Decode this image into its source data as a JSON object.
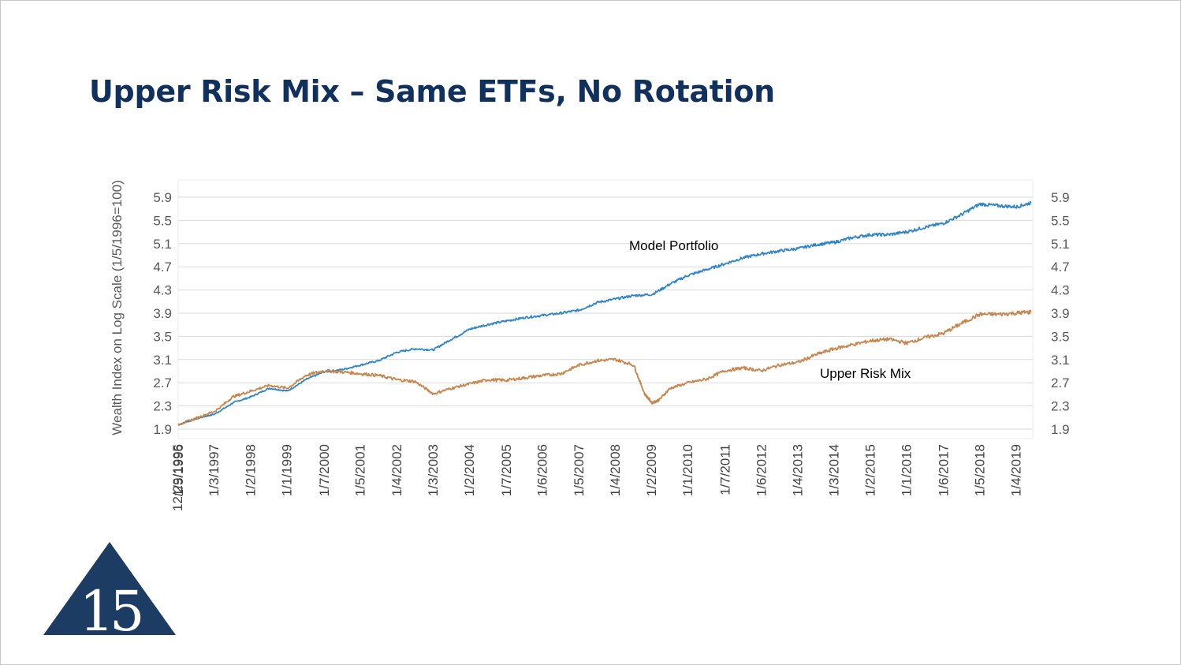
{
  "slide": {
    "title": "Upper Risk Mix – Same ETFs, No Rotation"
  },
  "chart_data": {
    "type": "line",
    "ylabel": "Wealth Index on Log Scale (1/5/1996=100)",
    "y_scale": "log",
    "ylim": [
      1.9,
      5.9
    ],
    "y_ticks": [
      "1.9",
      "2.3",
      "2.7",
      "3.1",
      "3.5",
      "3.9",
      "4.3",
      "4.7",
      "5.1",
      "5.5",
      "5.9"
    ],
    "y_ticks_right": [
      "1.9",
      "2.3",
      "2.7",
      "3.1",
      "3.5",
      "3.9",
      "4.3",
      "4.7",
      "5.1",
      "5.5",
      "5.9"
    ],
    "grid": true,
    "x_ticks": [
      "12/29/1995",
      "1/5/1996",
      "1/3/1997",
      "1/2/1998",
      "1/1/1999",
      "1/7/2000",
      "1/5/2001",
      "1/4/2002",
      "1/3/2003",
      "1/2/2004",
      "1/7/2005",
      "1/6/2006",
      "1/5/2007",
      "1/4/2008",
      "1/2/2009",
      "1/1/2010",
      "1/7/2011",
      "1/6/2012",
      "1/4/2013",
      "1/3/2014",
      "1/2/2015",
      "1/1/2016",
      "1/6/2017",
      "1/5/2018",
      "1/4/2019"
    ],
    "x_tick_years": [
      1996.0,
      1996.02,
      1997.0,
      1998.0,
      1999.0,
      2000.02,
      2001.01,
      2002.01,
      2003.01,
      2004.0,
      2005.02,
      2006.01,
      2007.01,
      2008.01,
      2009.0,
      2010.0,
      2011.02,
      2012.02,
      2013.01,
      2014.01,
      2015.0,
      2016.0,
      2017.02,
      2018.01,
      2019.01
    ],
    "annotations": [
      "Model Portfolio",
      "Upper Risk Mix"
    ],
    "series": [
      {
        "name": "Model Portfolio",
        "color": "#2e86c8",
        "x": [
          1996.0,
          1996.5,
          1997.0,
          1997.5,
          1998.0,
          1998.5,
          1999.0,
          1999.5,
          2000.0,
          2000.5,
          2001.0,
          2001.5,
          2002.0,
          2002.5,
          2003.0,
          2003.5,
          2004.0,
          2004.5,
          2005.0,
          2005.5,
          2006.0,
          2006.5,
          2007.0,
          2007.5,
          2008.0,
          2008.5,
          2009.0,
          2009.5,
          2010.0,
          2010.5,
          2011.0,
          2011.5,
          2012.0,
          2012.5,
          2013.0,
          2013.5,
          2014.0,
          2014.5,
          2015.0,
          2015.5,
          2016.0,
          2016.5,
          2017.0,
          2017.5,
          2018.0,
          2018.5,
          2019.0,
          2019.4
        ],
        "y": [
          1.97,
          2.07,
          2.15,
          2.35,
          2.45,
          2.6,
          2.55,
          2.75,
          2.88,
          2.92,
          3.0,
          3.08,
          3.22,
          3.28,
          3.26,
          3.45,
          3.62,
          3.7,
          3.76,
          3.82,
          3.86,
          3.9,
          3.95,
          4.08,
          4.14,
          4.2,
          4.22,
          4.4,
          4.55,
          4.65,
          4.75,
          4.85,
          4.92,
          4.97,
          5.01,
          5.08,
          5.12,
          5.2,
          5.25,
          5.25,
          5.3,
          5.38,
          5.45,
          5.6,
          5.78,
          5.75,
          5.73,
          5.8
        ]
      },
      {
        "name": "Upper Risk Mix",
        "color": "#c9854e",
        "x": [
          1996.0,
          1996.5,
          1997.0,
          1997.5,
          1998.0,
          1998.5,
          1999.0,
          1999.5,
          2000.0,
          2000.5,
          2001.0,
          2001.5,
          2002.0,
          2002.5,
          2003.0,
          2003.5,
          2004.0,
          2004.5,
          2005.0,
          2005.5,
          2006.0,
          2006.5,
          2007.0,
          2007.5,
          2008.0,
          2008.5,
          2008.8,
          2009.0,
          2009.2,
          2009.5,
          2010.0,
          2010.5,
          2011.0,
          2011.5,
          2012.0,
          2012.5,
          2013.0,
          2013.5,
          2014.0,
          2014.5,
          2015.0,
          2015.5,
          2016.0,
          2016.5,
          2017.0,
          2017.5,
          2018.0,
          2018.5,
          2019.0,
          2019.4
        ],
        "y": [
          1.97,
          2.08,
          2.2,
          2.45,
          2.55,
          2.65,
          2.6,
          2.82,
          2.9,
          2.88,
          2.85,
          2.82,
          2.75,
          2.72,
          2.5,
          2.6,
          2.68,
          2.75,
          2.74,
          2.78,
          2.82,
          2.85,
          3.0,
          3.08,
          3.1,
          3.0,
          2.5,
          2.35,
          2.4,
          2.6,
          2.7,
          2.76,
          2.9,
          2.95,
          2.9,
          3.0,
          3.05,
          3.18,
          3.28,
          3.35,
          3.42,
          3.45,
          3.38,
          3.48,
          3.55,
          3.72,
          3.88,
          3.88,
          3.9,
          3.92
        ]
      }
    ]
  },
  "logo": {
    "text": "15",
    "color": "#1d3c63"
  }
}
